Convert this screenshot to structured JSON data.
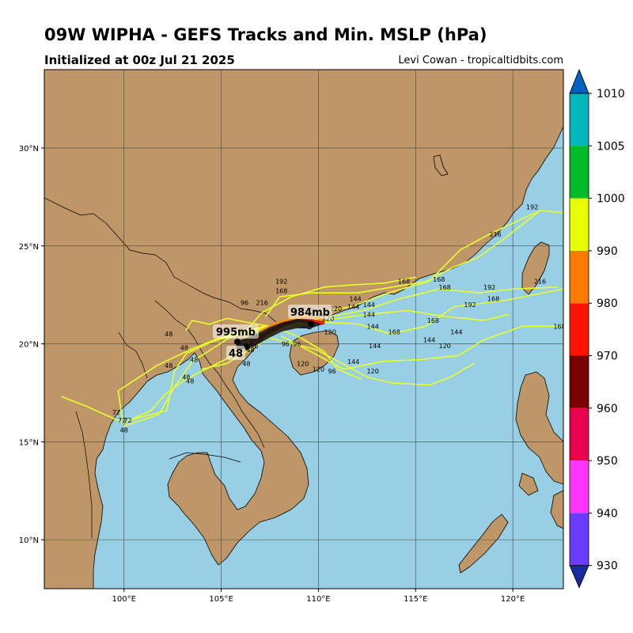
{
  "title": "09W WIPHA - GEFS Tracks and Min. MSLP (hPa)",
  "subtitle": "Initialized at 00z Jul 21 2025",
  "credit": "Levi Cowan - tropicaltidbits.com",
  "map": {
    "extent": {
      "lon_min": 95.9,
      "lon_max": 122.6,
      "lat_min": 7.5,
      "lat_max": 34.0
    },
    "lat_labels": [
      "10°N",
      "15°N",
      "20°N",
      "25°N",
      "30°N"
    ],
    "lat_values": [
      10,
      15,
      20,
      25,
      30
    ],
    "lon_labels": [
      "100°E",
      "105°E",
      "110°E",
      "115°E",
      "120°E"
    ],
    "lon_values": [
      100,
      105,
      110,
      115,
      120
    ],
    "colors": {
      "ocean": "#98cfe4",
      "land": "#bf9667",
      "track": "#e8ff2a",
      "grid": "#444444"
    }
  },
  "colorbar": {
    "ticks": [
      "930",
      "940",
      "950",
      "960",
      "970",
      "980",
      "990",
      "1000",
      "1005",
      "1010"
    ],
    "colors": [
      "#1a2aa0",
      "#6a3cff",
      "#ff35ff",
      "#e8004e",
      "#7a0000",
      "#ff1200",
      "#ff7a00",
      "#e8ff00",
      "#00bb2a",
      "#00b8bb",
      "#0060c0"
    ]
  },
  "min_pressure_labels": [
    {
      "text": "984mb",
      "lon": 109.6,
      "lat": 21.65
    },
    {
      "text": "995mb",
      "lon": 105.8,
      "lat": 20.65
    }
  ],
  "hour_marker_label": "48",
  "tracks": [
    {
      "points": [
        [
          119.8,
          21.5
        ],
        [
          118.5,
          21.2
        ],
        [
          116.5,
          21.4
        ],
        [
          114.6,
          21.7
        ],
        [
          112.5,
          21.5
        ],
        [
          111.0,
          21.3
        ],
        [
          109.2,
          21.1
        ],
        [
          107.6,
          20.7
        ],
        [
          106.2,
          20.4
        ]
      ]
    },
    {
      "points": [
        [
          121.4,
          26.8
        ],
        [
          118.8,
          25.6
        ],
        [
          117.3,
          24.8
        ],
        [
          115.7,
          23.2
        ],
        [
          113.6,
          22.6
        ],
        [
          111.7,
          21.9
        ],
        [
          110.0,
          21.6
        ],
        [
          108.3,
          21.2
        ],
        [
          106.6,
          20.6
        ]
      ]
    },
    {
      "points": [
        [
          122.6,
          22.8
        ],
        [
          119.5,
          22.2
        ],
        [
          117.0,
          21.9
        ],
        [
          115.5,
          20.9
        ],
        [
          113.7,
          20.5
        ],
        [
          112.1,
          21.0
        ],
        [
          110.4,
          21.1
        ],
        [
          108.8,
          20.9
        ],
        [
          107.0,
          20.4
        ]
      ]
    },
    {
      "points": [
        [
          122.6,
          20.9
        ],
        [
          120.5,
          20.9
        ],
        [
          118.5,
          20.2
        ],
        [
          117.2,
          19.4
        ],
        [
          115.3,
          19.2
        ],
        [
          113.3,
          19.1
        ],
        [
          111.3,
          18.7
        ],
        [
          109.8,
          19.5
        ],
        [
          108.1,
          20.4
        ]
      ]
    },
    {
      "points": [
        [
          118.0,
          19.0
        ],
        [
          116.8,
          18.3
        ],
        [
          115.7,
          17.9
        ],
        [
          113.8,
          18.0
        ],
        [
          112.5,
          18.3
        ],
        [
          111.4,
          18.9
        ],
        [
          109.9,
          19.7
        ],
        [
          107.5,
          20.3
        ]
      ]
    },
    {
      "points": [
        [
          122.6,
          26.7
        ],
        [
          121.4,
          26.8
        ],
        [
          119.6,
          25.4
        ],
        [
          118.2,
          24.4
        ],
        [
          116.9,
          23.9
        ],
        [
          115.6,
          23.2
        ],
        [
          113.8,
          22.9
        ],
        [
          112.0,
          22.6
        ],
        [
          109.6,
          22.6
        ],
        [
          108.0,
          22.4
        ],
        [
          107.3,
          21.4
        ]
      ]
    },
    {
      "points": [
        [
          122.3,
          22.9
        ],
        [
          120.0,
          22.8
        ],
        [
          118.3,
          22.6
        ],
        [
          116.2,
          22.8
        ],
        [
          114.2,
          22.3
        ],
        [
          112.3,
          21.7
        ],
        [
          110.1,
          21.3
        ],
        [
          108.4,
          20.9
        ],
        [
          106.9,
          20.4
        ]
      ]
    },
    {
      "points": [
        [
          115.0,
          23.4
        ],
        [
          113.4,
          23.1
        ],
        [
          111.6,
          23.0
        ],
        [
          110.3,
          22.9
        ],
        [
          108.6,
          22.4
        ],
        [
          107.1,
          21.6
        ],
        [
          106.3,
          20.7
        ]
      ]
    },
    {
      "points": [
        [
          112.2,
          18.2
        ],
        [
          111.0,
          18.7
        ],
        [
          110.3,
          19.6
        ],
        [
          109.1,
          20.3
        ],
        [
          107.7,
          20.9
        ],
        [
          106.6,
          20.7
        ]
      ]
    },
    {
      "points": [
        [
          99.9,
          16.2
        ],
        [
          99.7,
          17.6
        ],
        [
          101.7,
          18.9
        ],
        [
          103.4,
          19.7
        ],
        [
          104.9,
          20.3
        ],
        [
          106.0,
          20.6
        ],
        [
          107.4,
          20.9
        ]
      ]
    },
    {
      "points": [
        [
          100.3,
          16.1
        ],
        [
          101.4,
          16.6
        ],
        [
          102.1,
          17.4
        ],
        [
          103.2,
          18.2
        ],
        [
          104.4,
          18.8
        ],
        [
          105.6,
          19.4
        ],
        [
          106.6,
          20.2
        ],
        [
          107.8,
          20.9
        ]
      ]
    },
    {
      "points": [
        [
          96.8,
          17.3
        ],
        [
          98.1,
          16.8
        ],
        [
          99.9,
          16.0
        ],
        [
          102.2,
          16.6
        ],
        [
          102.6,
          18.6
        ],
        [
          103.2,
          19.5
        ],
        [
          104.5,
          20.1
        ],
        [
          105.8,
          20.5
        ],
        [
          107.2,
          20.9
        ]
      ]
    },
    {
      "points": [
        [
          100.0,
          15.8
        ],
        [
          101.8,
          16.4
        ],
        [
          102.6,
          17.8
        ],
        [
          103.1,
          18.5
        ],
        [
          103.5,
          19.1
        ],
        [
          104.3,
          19.6
        ],
        [
          105.4,
          20.3
        ],
        [
          106.7,
          20.7
        ]
      ]
    },
    {
      "points": [
        [
          103.2,
          20.7
        ],
        [
          103.5,
          21.2
        ],
        [
          104.4,
          21.0
        ],
        [
          105.3,
          21.3
        ],
        [
          106.3,
          21.1
        ],
        [
          107.5,
          20.9
        ]
      ]
    },
    {
      "points": [
        [
          104.0,
          18.7
        ],
        [
          105.3,
          19.0
        ],
        [
          106.8,
          19.9
        ],
        [
          108.2,
          20.8
        ],
        [
          109.4,
          21.2
        ],
        [
          110.7,
          21.1
        ]
      ]
    }
  ],
  "hour_labels": [
    {
      "text": "192",
      "lon": 121.0,
      "lat": 27.0
    },
    {
      "text": "216",
      "lon": 119.1,
      "lat": 25.6
    },
    {
      "text": "216",
      "lon": 121.4,
      "lat": 23.2
    },
    {
      "text": "192",
      "lon": 118.8,
      "lat": 22.9
    },
    {
      "text": "168",
      "lon": 119.0,
      "lat": 22.3
    },
    {
      "text": "192",
      "lon": 117.8,
      "lat": 22.0
    },
    {
      "text": "168",
      "lon": 122.4,
      "lat": 20.9
    },
    {
      "text": "168",
      "lon": 116.2,
      "lat": 23.3
    },
    {
      "text": "168",
      "lon": 116.5,
      "lat": 22.9
    },
    {
      "text": "168",
      "lon": 114.4,
      "lat": 23.2
    },
    {
      "text": "168",
      "lon": 115.9,
      "lat": 21.2
    },
    {
      "text": "144",
      "lon": 117.1,
      "lat": 20.6
    },
    {
      "text": "144",
      "lon": 115.7,
      "lat": 20.2
    },
    {
      "text": "120",
      "lon": 116.5,
      "lat": 19.9
    },
    {
      "text": "168",
      "lon": 113.9,
      "lat": 20.6
    },
    {
      "text": "144",
      "lon": 112.8,
      "lat": 20.9
    },
    {
      "text": "144",
      "lon": 112.6,
      "lat": 21.5
    },
    {
      "text": "144",
      "lon": 111.9,
      "lat": 22.3
    },
    {
      "text": "144",
      "lon": 112.6,
      "lat": 22.0
    },
    {
      "text": "144",
      "lon": 111.8,
      "lat": 21.9
    },
    {
      "text": "144",
      "lon": 112.9,
      "lat": 19.9
    },
    {
      "text": "144",
      "lon": 111.8,
      "lat": 19.1
    },
    {
      "text": "120",
      "lon": 112.8,
      "lat": 18.6
    },
    {
      "text": "192",
      "lon": 108.1,
      "lat": 23.2
    },
    {
      "text": "168",
      "lon": 108.1,
      "lat": 22.7
    },
    {
      "text": "216",
      "lon": 107.1,
      "lat": 22.1
    },
    {
      "text": "96",
      "lon": 106.2,
      "lat": 22.1
    },
    {
      "text": "120",
      "lon": 110.9,
      "lat": 21.8
    },
    {
      "text": "120",
      "lon": 110.5,
      "lat": 21.3
    },
    {
      "text": "120",
      "lon": 110.6,
      "lat": 20.6
    },
    {
      "text": "120",
      "lon": 109.2,
      "lat": 19.0
    },
    {
      "text": "120",
      "lon": 110.0,
      "lat": 18.7
    },
    {
      "text": "96",
      "lon": 110.7,
      "lat": 18.6
    },
    {
      "text": "96",
      "lon": 108.3,
      "lat": 20.0
    },
    {
      "text": "96",
      "lon": 108.9,
      "lat": 20.0
    },
    {
      "text": "96",
      "lon": 106.7,
      "lat": 19.9
    },
    {
      "text": "48",
      "lon": 102.3,
      "lat": 20.5
    },
    {
      "text": "48",
      "lon": 103.1,
      "lat": 19.8
    },
    {
      "text": "48",
      "lon": 103.6,
      "lat": 19.2
    },
    {
      "text": "48",
      "lon": 102.3,
      "lat": 18.9
    },
    {
      "text": "48",
      "lon": 103.2,
      "lat": 18.3
    },
    {
      "text": "48",
      "lon": 103.4,
      "lat": 18.1
    },
    {
      "text": "48",
      "lon": 106.3,
      "lat": 19.0
    },
    {
      "text": "48",
      "lon": 106.5,
      "lat": 19.7
    },
    {
      "text": "72",
      "lon": 99.6,
      "lat": 16.5
    },
    {
      "text": "72",
      "lon": 99.9,
      "lat": 16.1
    },
    {
      "text": "72",
      "lon": 100.2,
      "lat": 16.1
    },
    {
      "text": "48",
      "lon": 100.0,
      "lat": 15.6
    }
  ]
}
